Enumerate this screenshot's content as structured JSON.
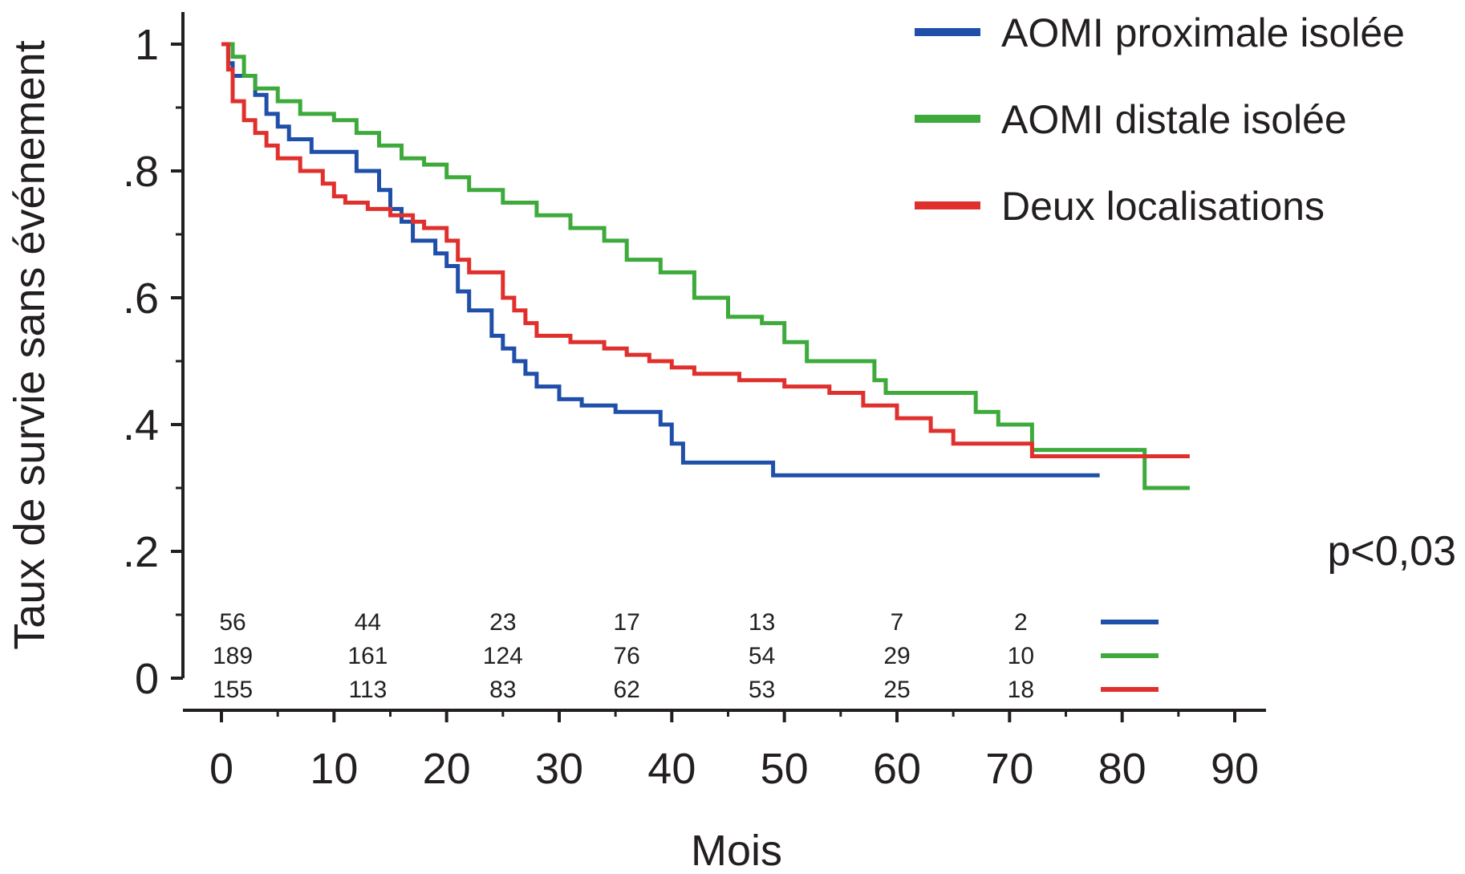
{
  "chart_data": {
    "type": "line",
    "step": true,
    "title": "",
    "xlabel": "Mois",
    "ylabel": "Taux de survie sans événement",
    "xlim": [
      0,
      90
    ],
    "ylim": [
      0,
      1.05
    ],
    "xticks": [
      0,
      10,
      20,
      30,
      40,
      50,
      60,
      70,
      80,
      90
    ],
    "xtick_labels": [
      "0",
      "10",
      "20",
      "30",
      "40",
      "50",
      "60",
      "70",
      "80",
      "90"
    ],
    "yticks": [
      0,
      0.2,
      0.4,
      0.6,
      0.8,
      1
    ],
    "ytick_labels": [
      "0",
      ".2",
      ".4",
      ".6",
      ".8",
      "1"
    ],
    "grid": false,
    "legend_position": "top-right",
    "annotation": "p<0,03",
    "series": [
      {
        "name": "AOMI proximale isolée",
        "color": "#1f4fa8",
        "x": [
          0,
          0.6,
          1,
          3,
          4,
          5,
          6,
          8,
          12,
          14,
          15,
          16,
          17,
          19,
          20,
          21,
          22,
          24,
          25,
          26,
          27,
          28,
          30,
          32,
          35,
          39,
          40,
          41,
          49,
          78
        ],
        "y": [
          1.0,
          0.97,
          0.95,
          0.92,
          0.89,
          0.87,
          0.85,
          0.83,
          0.8,
          0.77,
          0.74,
          0.72,
          0.69,
          0.67,
          0.65,
          0.61,
          0.58,
          0.54,
          0.52,
          0.5,
          0.48,
          0.46,
          0.44,
          0.43,
          0.42,
          0.4,
          0.37,
          0.34,
          0.32,
          0.32
        ]
      },
      {
        "name": "AOMI distale isolée",
        "color": "#3daa3b",
        "x": [
          0,
          1,
          2,
          3,
          5,
          7,
          10,
          12,
          14,
          16,
          18,
          20,
          22,
          25,
          28,
          31,
          34,
          36,
          39,
          42,
          45,
          48,
          50,
          52,
          58,
          59,
          67,
          69,
          72,
          82,
          86
        ],
        "y": [
          1.0,
          0.98,
          0.95,
          0.93,
          0.91,
          0.89,
          0.88,
          0.86,
          0.84,
          0.82,
          0.81,
          0.79,
          0.77,
          0.75,
          0.73,
          0.71,
          0.69,
          0.66,
          0.64,
          0.6,
          0.57,
          0.56,
          0.53,
          0.5,
          0.47,
          0.45,
          0.42,
          0.4,
          0.36,
          0.3,
          0.3
        ]
      },
      {
        "name": "Deux localisations",
        "color": "#e0302d",
        "x": [
          0,
          0.6,
          1,
          2,
          3,
          4,
          5,
          7,
          9,
          10,
          11,
          13,
          15,
          17,
          18,
          20,
          21,
          22,
          25,
          26,
          27,
          28,
          31,
          34,
          36,
          38,
          40,
          42,
          46,
          50,
          54,
          57,
          60,
          63,
          65,
          72,
          86
        ],
        "y": [
          1.0,
          0.96,
          0.91,
          0.88,
          0.86,
          0.84,
          0.82,
          0.8,
          0.78,
          0.76,
          0.75,
          0.74,
          0.73,
          0.72,
          0.71,
          0.69,
          0.66,
          0.64,
          0.6,
          0.58,
          0.56,
          0.54,
          0.53,
          0.52,
          0.51,
          0.5,
          0.49,
          0.48,
          0.47,
          0.46,
          0.45,
          0.43,
          0.41,
          0.39,
          0.37,
          0.35,
          0.35
        ]
      }
    ],
    "risk_table": {
      "x": [
        1,
        13,
        25,
        36,
        48,
        60,
        71
      ],
      "rows": [
        {
          "series": "AOMI proximale isolée",
          "color": "#1f4fa8",
          "values": [
            "56",
            "44",
            "23",
            "17",
            "13",
            "7",
            "2"
          ]
        },
        {
          "series": "AOMI distale isolée",
          "color": "#3daa3b",
          "values": [
            "189",
            "161",
            "124",
            "76",
            "54",
            "29",
            "10"
          ]
        },
        {
          "series": "Deux localisations",
          "color": "#e0302d",
          "values": [
            "155",
            "113",
            "83",
            "62",
            "53",
            "25",
            "18"
          ]
        }
      ]
    }
  }
}
